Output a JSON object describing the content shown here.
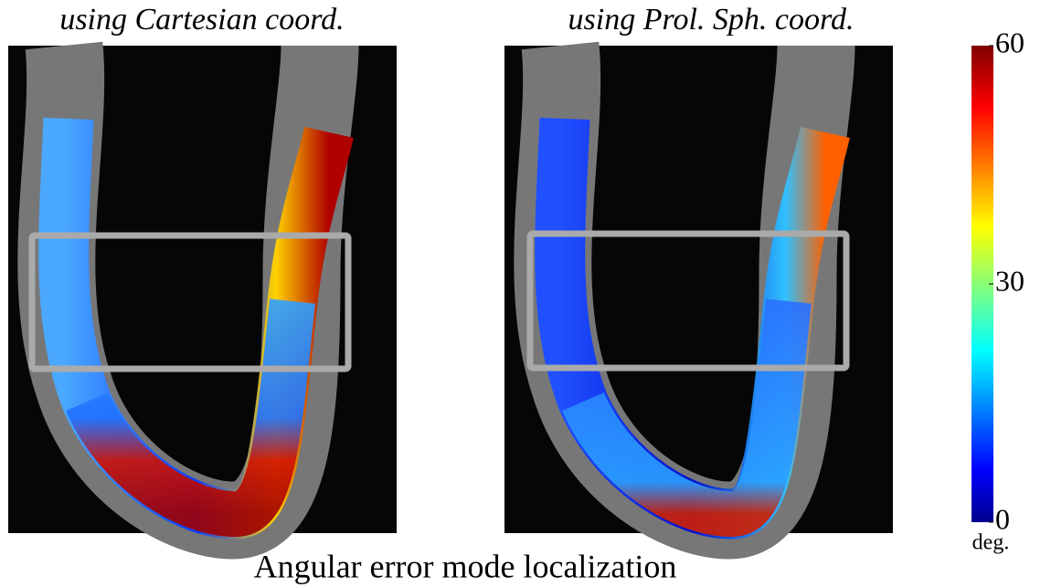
{
  "panels": [
    {
      "title": "using Cartesian coord."
    },
    {
      "title": "using Prol. Sph. coord."
    }
  ],
  "colorbar": {
    "lim": [
      0,
      60
    ],
    "ticks": [
      0,
      30,
      60
    ],
    "unit": "deg.",
    "colormap": "jet"
  },
  "caption": "Angular error mode localization"
}
